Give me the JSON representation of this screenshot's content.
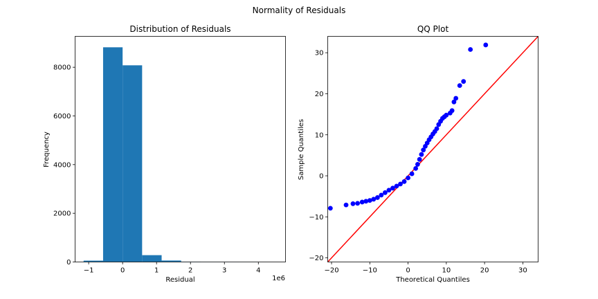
{
  "suptitle": "Normality of Residuals",
  "colors": {
    "hist_bar": "#1f77b4",
    "qq_points": "#0000ff",
    "qq_line": "#ff0000",
    "axes": "#000000"
  },
  "chart_data": [
    {
      "type": "bar",
      "title": "Distribution of Residuals",
      "xlabel": "Residual",
      "ylabel": "Frequency",
      "x_offset_text": "1e6",
      "xlim": [
        -1.4,
        4.8
      ],
      "ylim": [
        0,
        9270
      ],
      "xticks": [
        -1,
        0,
        1,
        2,
        3,
        4
      ],
      "xtick_labels": [
        "−1",
        "0",
        "1",
        "2",
        "3",
        "4"
      ],
      "yticks": [
        0,
        2000,
        4000,
        6000,
        8000
      ],
      "ytick_labels": [
        "0",
        "2000",
        "4000",
        "6000",
        "8000"
      ],
      "bin_edges": [
        -1.15,
        -0.575,
        0.0,
        0.575,
        1.15,
        1.725,
        2.3,
        2.875,
        3.45,
        4.025,
        4.6
      ],
      "values": [
        55,
        8820,
        8080,
        280,
        60,
        12,
        5,
        3,
        2,
        1
      ]
    },
    {
      "type": "scatter",
      "title": "QQ Plot",
      "xlabel": "Theoretical Quantiles",
      "ylabel": "Sample Quantiles",
      "xlim": [
        -21,
        34
      ],
      "ylim": [
        -21,
        34
      ],
      "xticks": [
        -20,
        -10,
        0,
        10,
        20,
        30
      ],
      "xtick_labels": [
        "−20",
        "−10",
        "0",
        "10",
        "20",
        "30"
      ],
      "yticks": [
        -20,
        -10,
        0,
        10,
        20,
        30
      ],
      "ytick_labels": [
        "−20",
        "−10",
        "0",
        "10",
        "20",
        "30"
      ],
      "reference_line": {
        "x": [
          -21,
          34
        ],
        "y": [
          -21,
          34
        ]
      },
      "x": [
        -20.3,
        -16.2,
        -14.4,
        -13.2,
        -12,
        -11,
        -10,
        -9,
        -8,
        -7,
        -6,
        -5,
        -4,
        -3,
        -2,
        -1,
        0,
        1,
        2,
        2.5,
        3,
        3.5,
        4,
        4.5,
        5,
        5.5,
        6,
        6.5,
        7,
        7.5,
        8,
        8.5,
        9,
        9.5,
        10,
        11,
        11.5,
        12,
        12.5,
        13.5,
        14.5,
        16.3,
        20.3
      ],
      "y": [
        -7.9,
        -7.1,
        -6.8,
        -6.7,
        -6.4,
        -6.2,
        -6.0,
        -5.7,
        -5.3,
        -4.7,
        -4.1,
        -3.5,
        -3.0,
        -2.5,
        -2.0,
        -1.4,
        -0.5,
        0.5,
        1.8,
        2.8,
        4.0,
        5.2,
        6.3,
        7.2,
        8.0,
        8.8,
        9.5,
        10.2,
        10.8,
        11.5,
        12.5,
        13.3,
        14.0,
        14.4,
        14.8,
        15.3,
        15.9,
        18.0,
        18.9,
        22.0,
        23.0,
        30.8,
        31.9
      ]
    }
  ]
}
